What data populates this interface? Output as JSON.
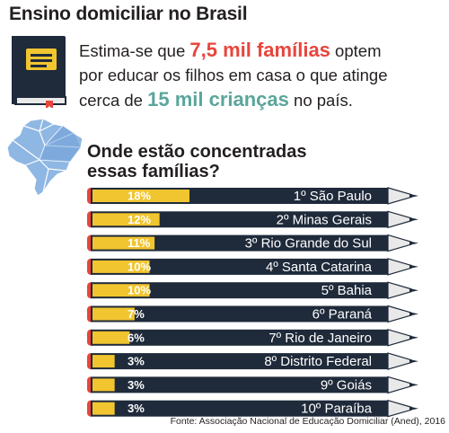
{
  "title": "Ensino domiciliar no Brasil",
  "intro": {
    "line1_pre": "Estima-se que ",
    "highlight_families": "7,5 mil famílias",
    "line1_post": " optem",
    "line2": "por educar os filhos em casa o que atinge",
    "line3_pre": "cerca de ",
    "highlight_children": "15 mil crianças",
    "line3_post": " no país."
  },
  "question": {
    "line1": "Onde estão concentradas",
    "line2": "essas famílias?"
  },
  "source": "Fonte: Associação Nacional de Educação Domiciliar (Aned), 2016",
  "colors": {
    "accent_red": "#e8453c",
    "accent_teal": "#5aa69b",
    "pencil_body": "#1f2a3a",
    "pencil_fill": "#f1c52f",
    "pencil_eraser": "#e8453c",
    "book_cover": "#1f2a3a",
    "book_label": "#f1c52f",
    "map_blue": "#8fb7e3"
  },
  "icons": [
    "book-icon",
    "brazil-map-icon",
    "pencil-icon"
  ],
  "chart_data": {
    "type": "bar",
    "title": "Onde estão concentradas essas famílias?",
    "categories": [
      "1º São Paulo",
      "2º Minas Gerais",
      "3º Rio Grande do Sul",
      "4º Santa Catarina",
      "5º Bahia",
      "6º Paraná",
      "7º Rio de Janeiro",
      "8º Distrito Federal",
      "9º Goiás",
      "10º Paraíba"
    ],
    "values": [
      18,
      12,
      11,
      10,
      10,
      7,
      6,
      3,
      3,
      3
    ],
    "value_labels": [
      "18%",
      "12%",
      "11%",
      "10%",
      "10%",
      "7%",
      "6%",
      "3%",
      "3%",
      "3%"
    ],
    "unit": "%"
  }
}
